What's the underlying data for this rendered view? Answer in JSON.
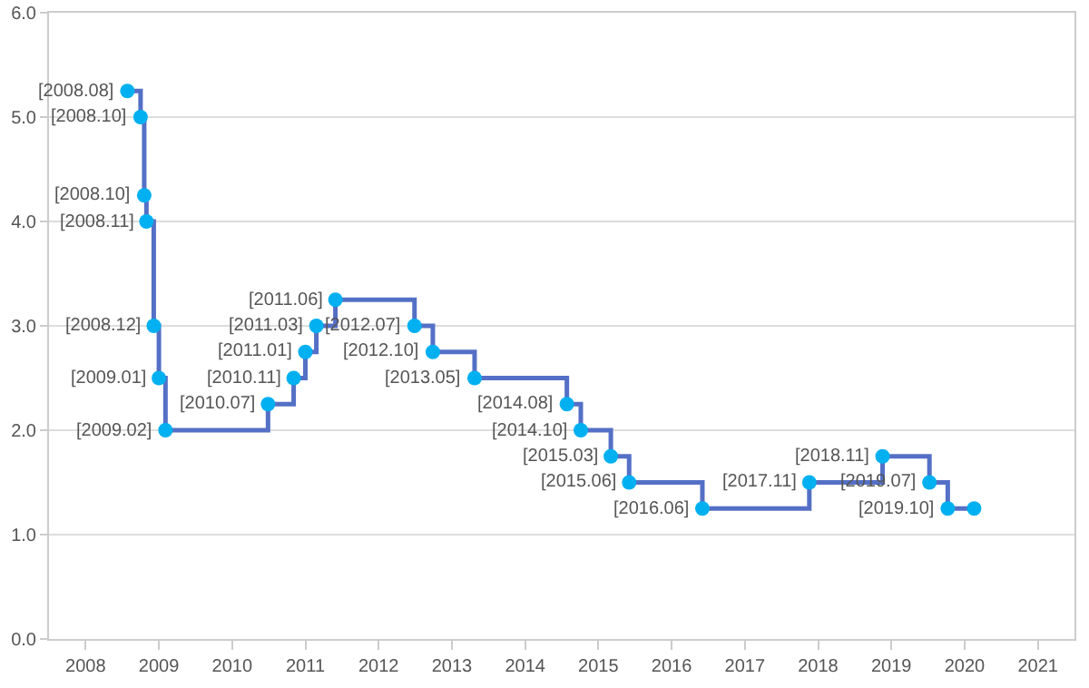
{
  "chart_data": {
    "type": "step",
    "x": [
      2008.57,
      2008.75,
      2008.8,
      2008.83,
      2008.93,
      2009.0,
      2009.09,
      2010.49,
      2010.84,
      2011.0,
      2011.15,
      2011.41,
      2012.49,
      2012.74,
      2013.31,
      2014.57,
      2014.76,
      2015.17,
      2015.42,
      2016.42,
      2017.88,
      2018.88,
      2019.52,
      2019.77,
      2020.13
    ],
    "series": [
      {
        "color": "#5470c6",
        "values": [
          5.25,
          5.0,
          4.25,
          4.0,
          3.0,
          2.5,
          2.0,
          2.25,
          2.5,
          2.75,
          3.0,
          3.25,
          3.0,
          2.75,
          2.5,
          2.25,
          2.0,
          1.75,
          1.5,
          1.25,
          1.5,
          1.75,
          1.5,
          1.25,
          1.25
        ],
        "colors": [
          "#00b0f0",
          "#00b0f0",
          "#00b0f0",
          "#00b0f0",
          "#00b0f0",
          "#00b0f0",
          "#00b0f0",
          "#00b0f0",
          "#00b0f0",
          "#00b0f0",
          "#00b0f0",
          "#00b0f0",
          "#00b0f0",
          "#00b0f0",
          "#00b0f0",
          "#00b0f0",
          "#00b0f0",
          "#00b0f0",
          "#00b0f0",
          "#00b0f0",
          "#00b0f0",
          "#00b0f0",
          "#00b0f0",
          "#00b0f0",
          "#00b0f0"
        ]
      }
    ],
    "xlim": [
      2007.5,
      2021.5
    ],
    "xticks": [
      2008,
      2009,
      2010,
      2011,
      2012,
      2013,
      2014,
      2015,
      2016,
      2017,
      2018,
      2019,
      2020,
      2021
    ],
    "ylim": [
      0,
      6
    ],
    "yticks": [
      {
        "value": 0,
        "label": "0.0"
      },
      {
        "value": 1,
        "label": "1.0"
      },
      {
        "value": 2,
        "label": "2.0"
      },
      {
        "value": 3,
        "label": "3.0"
      },
      {
        "value": 4,
        "label": "4.0"
      },
      {
        "value": 5,
        "label": "5.0"
      },
      {
        "value": 6,
        "label": "6.0"
      }
    ],
    "grid": "y",
    "marker": "circle",
    "line_style": "solid",
    "annotations": [
      {
        "text": "[2008.08]",
        "x": 2008.57,
        "y": 5.25
      },
      {
        "text": "[2008.10]",
        "x": 2008.75,
        "y": 5.0
      },
      {
        "text": "[2008.10]",
        "x": 2008.8,
        "y": 4.25
      },
      {
        "text": "[2008.11]",
        "x": 2008.83,
        "y": 4.0
      },
      {
        "text": "[2008.12]",
        "x": 2008.93,
        "y": 3.0
      },
      {
        "text": "[2009.01]",
        "x": 2009.0,
        "y": 2.5
      },
      {
        "text": "[2009.02]",
        "x": 2009.09,
        "y": 2.0
      },
      {
        "text": "[2010.07]",
        "x": 2010.49,
        "y": 2.25
      },
      {
        "text": "[2010.11]",
        "x": 2010.84,
        "y": 2.5
      },
      {
        "text": "[2011.01]",
        "x": 2011.0,
        "y": 2.75
      },
      {
        "text": "[2011.03]",
        "x": 2011.15,
        "y": 3.0
      },
      {
        "text": "[2011.06]",
        "x": 2011.41,
        "y": 3.25
      },
      {
        "text": "[2012.07]",
        "x": 2012.49,
        "y": 3.0
      },
      {
        "text": "[2012.10]",
        "x": 2012.74,
        "y": 2.75
      },
      {
        "text": "[2013.05]",
        "x": 2013.31,
        "y": 2.5
      },
      {
        "text": "[2014.08]",
        "x": 2014.57,
        "y": 2.25
      },
      {
        "text": "[2014.10]",
        "x": 2014.76,
        "y": 2.0
      },
      {
        "text": "[2015.03]",
        "x": 2015.17,
        "y": 1.75
      },
      {
        "text": "[2015.06]",
        "x": 2015.42,
        "y": 1.5
      },
      {
        "text": "[2016.06]",
        "x": 2016.42,
        "y": 1.25
      },
      {
        "text": "[2017.11]",
        "x": 2017.88,
        "y": 1.5
      },
      {
        "text": "[2018.11]",
        "x": 2018.88,
        "y": 1.75
      },
      {
        "text": "[2019.07]",
        "x": 2019.52,
        "y": 1.5
      },
      {
        "text": "[2019.10]",
        "x": 2019.77,
        "y": 1.25
      }
    ]
  }
}
